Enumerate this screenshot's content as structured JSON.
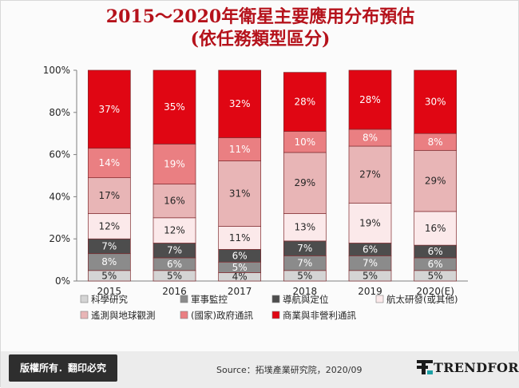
{
  "header": {
    "title_line1": "2015～2020年衛星主要應用分布預估",
    "title_line2": "(依任務類型區分)"
  },
  "footer": {
    "copyright": "版權所有．翻印必究",
    "source": "Source：拓墣產業研究院，2020/09",
    "brand_name": "TRENDFORCE"
  },
  "chart_data": {
    "type": "bar",
    "stacked": true,
    "percent": true,
    "categories": [
      "2015",
      "2016",
      "2017",
      "2018",
      "2019",
      "2020(E)"
    ],
    "ylim": [
      0,
      100
    ],
    "yticks": [
      "0%",
      "20%",
      "40%",
      "60%",
      "80%",
      "100%"
    ],
    "legend_position": "bottom",
    "series": [
      {
        "name": "科學研究",
        "color": "#d4d4d4",
        "values": [
          5,
          5,
          4,
          5,
          5,
          5
        ]
      },
      {
        "name": "軍事監控",
        "color": "#8b8b8b",
        "values": [
          8,
          6,
          5,
          7,
          7,
          6
        ]
      },
      {
        "name": "導航與定位",
        "color": "#4d4d4d",
        "values": [
          7,
          7,
          6,
          7,
          6,
          6
        ]
      },
      {
        "name": "航太研發(或其他)",
        "color": "#fbe9ea",
        "values": [
          12,
          12,
          11,
          13,
          19,
          16
        ]
      },
      {
        "name": "遙測與地球觀測",
        "color": "#e8b5b6",
        "values": [
          17,
          16,
          31,
          29,
          27,
          29
        ]
      },
      {
        "name": "(國家)政府通訊",
        "color": "#ea7f82",
        "values": [
          14,
          19,
          11,
          10,
          8,
          8
        ]
      },
      {
        "name": "商業與非營利通訊",
        "color": "#e00613",
        "values": [
          37,
          35,
          32,
          28,
          28,
          30
        ]
      }
    ]
  }
}
